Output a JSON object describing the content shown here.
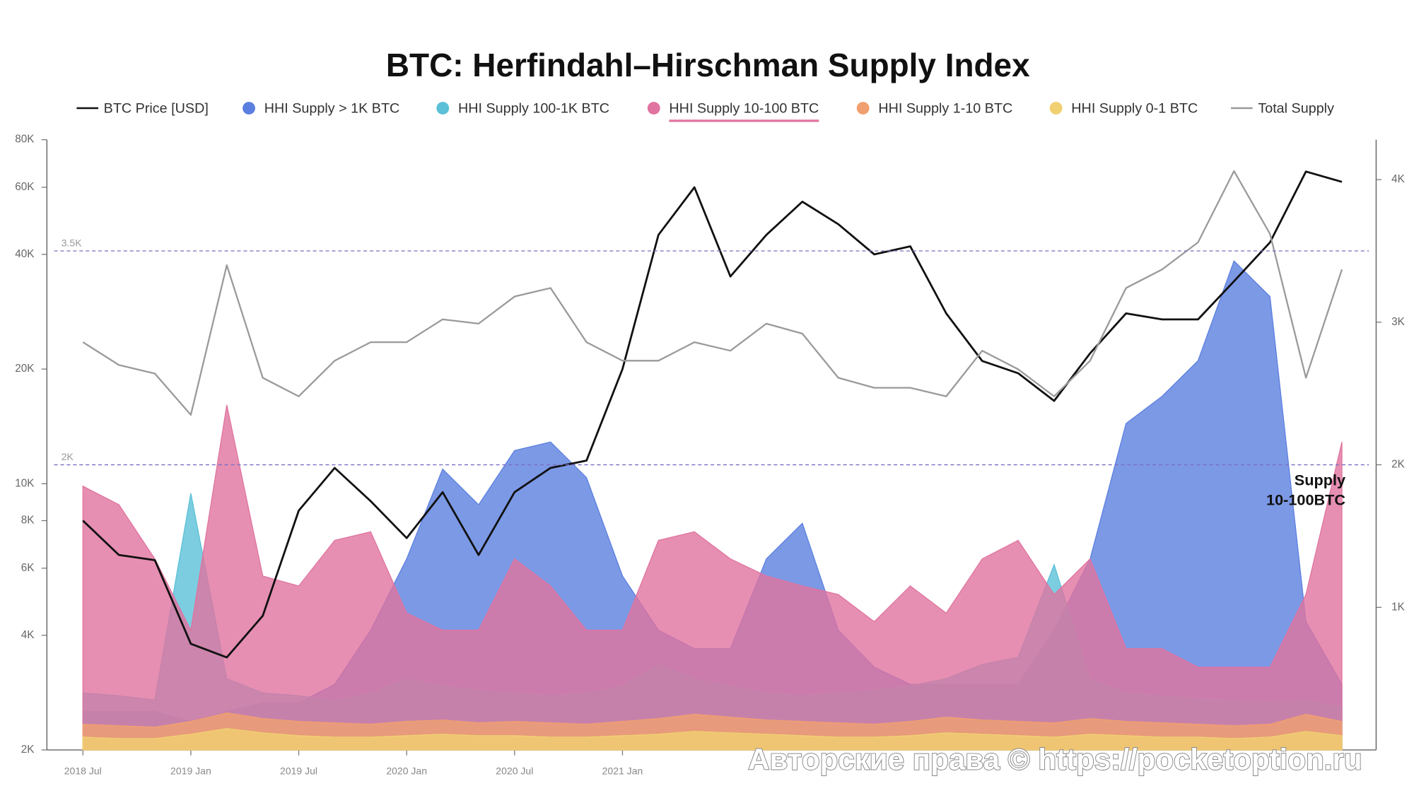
{
  "chart_data": {
    "type": "line_area",
    "title": "BTC: Herfindahl–Hirschman Supply Index",
    "ylog": true,
    "ylim": [
      2000,
      80000
    ],
    "yticks": [
      {
        "value": 2000,
        "label": "2K"
      },
      {
        "value": 4000,
        "label": "4K"
      },
      {
        "value": 6000,
        "label": "6K"
      },
      {
        "value": 8000,
        "label": "8K"
      },
      {
        "value": 10000,
        "label": "10K"
      },
      {
        "value": 20000,
        "label": "20K"
      },
      {
        "value": 40000,
        "label": "40K"
      },
      {
        "value": 60000,
        "label": "60K"
      },
      {
        "value": 80000,
        "label": "80K"
      }
    ],
    "y2lim": [
      0,
      4280
    ],
    "y2ticks": [
      {
        "value": 1000,
        "label": "1K"
      },
      {
        "value": 2000,
        "label": "2K"
      },
      {
        "value": 3000,
        "label": "3K"
      },
      {
        "value": 4000,
        "label": "4K"
      }
    ],
    "xlim": [
      "2018-06",
      "2024-06"
    ],
    "xticks": [
      {
        "value": "2018-07",
        "label": "2018 Jul"
      },
      {
        "value": "2019-01",
        "label": "2019 Jan"
      },
      {
        "value": "2019-07",
        "label": "2019 Jul"
      },
      {
        "value": "2020-01",
        "label": "2020 Jan"
      },
      {
        "value": "2020-07",
        "label": "2020 Jul"
      },
      {
        "value": "2021-01",
        "label": "2021 Jan"
      }
    ],
    "x": [
      "2018-07",
      "2018-09",
      "2018-11",
      "2019-01",
      "2019-03",
      "2019-05",
      "2019-07",
      "2019-09",
      "2019-11",
      "2020-01",
      "2020-03",
      "2020-05",
      "2020-07",
      "2020-09",
      "2020-11",
      "2021-01",
      "2021-03",
      "2021-05",
      "2021-07",
      "2021-09",
      "2021-11",
      "2022-01",
      "2022-03",
      "2022-05",
      "2022-07",
      "2022-09",
      "2022-11",
      "2023-01",
      "2023-03",
      "2023-05",
      "2023-07",
      "2023-09",
      "2023-11",
      "2024-01",
      "2024-03",
      "2024-05"
    ],
    "legend_selected": 3,
    "series": [
      {
        "name": "BTC Price [USD]",
        "kind": "line",
        "axis": "y",
        "color": "#111111",
        "values": [
          8000,
          6500,
          6300,
          3800,
          3500,
          4500,
          8500,
          11000,
          9000,
          7200,
          9500,
          6500,
          9500,
          11000,
          11500,
          20000,
          45000,
          60000,
          35000,
          45000,
          55000,
          48000,
          40000,
          42000,
          28000,
          21000,
          19500,
          16500,
          22000,
          28000,
          27000,
          27000,
          34000,
          43000,
          66000,
          62000
        ]
      },
      {
        "name": "HHI Supply > 1K BTC",
        "kind": "area",
        "axis": "y2",
        "color": "#5b7fe0",
        "values": [
          270,
          270,
          270,
          200,
          270,
          330,
          330,
          460,
          840,
          1340,
          1970,
          1720,
          2100,
          2160,
          1910,
          1220,
          840,
          710,
          710,
          1340,
          1590,
          840,
          580,
          460,
          460,
          460,
          460,
          840,
          1340,
          2290,
          2480,
          2730,
          3430,
          3180,
          900,
          460
        ]
      },
      {
        "name": "HHI Supply 100-1K BTC",
        "kind": "area",
        "axis": "y2",
        "color": "#5bc0d8",
        "values": [
          400,
          380,
          350,
          1800,
          500,
          400,
          380,
          350,
          400,
          500,
          450,
          420,
          400,
          380,
          400,
          450,
          600,
          500,
          450,
          400,
          380,
          400,
          420,
          450,
          500,
          600,
          650,
          1300,
          500,
          400,
          380,
          360,
          350,
          340,
          350,
          300
        ]
      },
      {
        "name": "HHI Supply 10-100 BTC",
        "kind": "area",
        "axis": "y2",
        "color": "#e0739f",
        "values": [
          1850,
          1720,
          1340,
          840,
          2420,
          1220,
          1150,
          1470,
          1530,
          960,
          840,
          840,
          1340,
          1150,
          840,
          840,
          1470,
          1530,
          1340,
          1220,
          1150,
          1090,
          900,
          1150,
          960,
          1340,
          1470,
          1090,
          1340,
          710,
          710,
          580,
          580,
          580,
          1090,
          2160
        ]
      },
      {
        "name": "HHI Supply 1-10 BTC",
        "kind": "area",
        "axis": "y2",
        "color": "#f0a070",
        "values": [
          180,
          170,
          160,
          200,
          260,
          220,
          200,
          190,
          180,
          200,
          210,
          190,
          200,
          190,
          180,
          200,
          220,
          250,
          230,
          210,
          200,
          190,
          180,
          200,
          230,
          210,
          200,
          190,
          220,
          200,
          190,
          180,
          170,
          180,
          250,
          200
        ]
      },
      {
        "name": "HHI Supply 0-1 BTC",
        "kind": "area",
        "axis": "y2",
        "color": "#f0d070",
        "values": [
          90,
          80,
          80,
          110,
          150,
          120,
          100,
          90,
          90,
          100,
          110,
          100,
          100,
          90,
          90,
          100,
          110,
          130,
          120,
          110,
          100,
          90,
          90,
          100,
          120,
          110,
          100,
          90,
          110,
          100,
          90,
          90,
          80,
          90,
          130,
          100
        ]
      },
      {
        "name": "Total Supply",
        "kind": "line",
        "axis": "y2",
        "color": "#9a9a9a",
        "values": [
          2860,
          2700,
          2640,
          2350,
          3400,
          2610,
          2480,
          2730,
          2860,
          2860,
          3020,
          2990,
          3180,
          3240,
          2860,
          2730,
          2730,
          2860,
          2800,
          2990,
          2920,
          2610,
          2540,
          2540,
          2480,
          2800,
          2670,
          2480,
          2730,
          3240,
          3370,
          3560,
          4060,
          3620,
          2610,
          3370
        ]
      }
    ],
    "reference_lines": [
      {
        "value": 3500,
        "label": "3.5K"
      },
      {
        "value": 2000,
        "label": "2K"
      }
    ],
    "annotation": [
      "Supply",
      "10-100BTC"
    ],
    "watermark": "Авторские права © https://pocketoption.ru"
  }
}
